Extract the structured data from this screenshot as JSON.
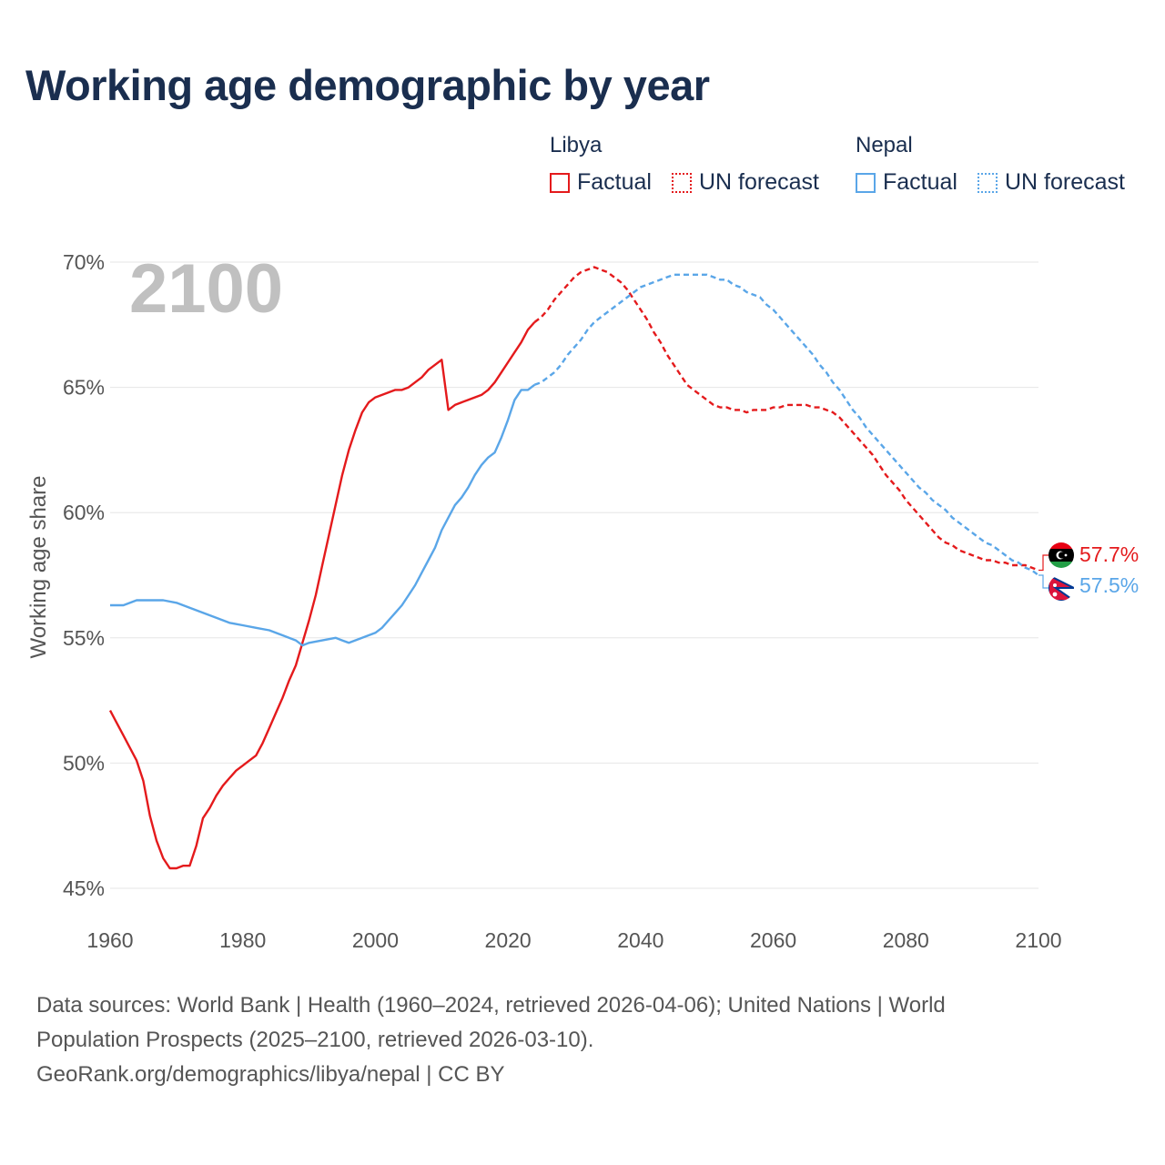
{
  "colors": {
    "libya": "#e41a1c",
    "nepal": "#5aa6e8",
    "title": "#1a2e4f",
    "grid": "#e6e6e6",
    "axis_text": "#555555",
    "year_watermark": "#c0c0c0"
  },
  "legend": {
    "groups": [
      {
        "name": "Libya",
        "factual_label": "Factual",
        "forecast_label": "UN forecast"
      },
      {
        "name": "Nepal",
        "factual_label": "Factual",
        "forecast_label": "UN forecast"
      }
    ]
  },
  "footer": {
    "line1": "Data sources: World Bank | Health (1960–2024, retrieved 2026-04-06); United Nations | World",
    "line2": "Population Prospects (2025–2100, retrieved 2026-03-10).",
    "line3": "GeoRank.org/demographics/libya/nepal | CC BY"
  },
  "chart_data": {
    "type": "line",
    "title": "Working age demographic by year",
    "year_watermark": "2100",
    "xlabel": "",
    "ylabel": "Working age share",
    "xlim": [
      1960,
      2100
    ],
    "ylim": [
      45,
      70
    ],
    "x_ticks": [
      1960,
      1980,
      2000,
      2020,
      2040,
      2060,
      2080,
      2100
    ],
    "y_ticks": [
      45,
      50,
      55,
      60,
      65,
      70
    ],
    "y_tick_labels": [
      "45%",
      "50%",
      "55%",
      "60%",
      "65%",
      "70%"
    ],
    "forecast_start": 2024,
    "series": [
      {
        "name": "Libya",
        "end_label": "57.7%",
        "points": [
          [
            1960,
            52.1
          ],
          [
            1962,
            51.1
          ],
          [
            1964,
            50.1
          ],
          [
            1965,
            49.3
          ],
          [
            1966,
            47.9
          ],
          [
            1967,
            46.9
          ],
          [
            1968,
            46.2
          ],
          [
            1969,
            45.8
          ],
          [
            1970,
            45.8
          ],
          [
            1971,
            45.9
          ],
          [
            1972,
            45.9
          ],
          [
            1973,
            46.7
          ],
          [
            1974,
            47.8
          ],
          [
            1975,
            48.2
          ],
          [
            1976,
            48.7
          ],
          [
            1977,
            49.1
          ],
          [
            1978,
            49.4
          ],
          [
            1979,
            49.7
          ],
          [
            1980,
            49.9
          ],
          [
            1981,
            50.1
          ],
          [
            1982,
            50.3
          ],
          [
            1983,
            50.8
          ],
          [
            1984,
            51.4
          ],
          [
            1985,
            52.0
          ],
          [
            1986,
            52.6
          ],
          [
            1987,
            53.3
          ],
          [
            1988,
            53.9
          ],
          [
            1989,
            54.8
          ],
          [
            1990,
            55.7
          ],
          [
            1991,
            56.7
          ],
          [
            1992,
            57.9
          ],
          [
            1993,
            59.1
          ],
          [
            1994,
            60.3
          ],
          [
            1995,
            61.5
          ],
          [
            1996,
            62.5
          ],
          [
            1997,
            63.3
          ],
          [
            1998,
            64.0
          ],
          [
            1999,
            64.4
          ],
          [
            2000,
            64.6
          ],
          [
            2001,
            64.7
          ],
          [
            2002,
            64.8
          ],
          [
            2003,
            64.9
          ],
          [
            2004,
            64.9
          ],
          [
            2005,
            65.0
          ],
          [
            2006,
            65.2
          ],
          [
            2007,
            65.4
          ],
          [
            2008,
            65.7
          ],
          [
            2009,
            65.9
          ],
          [
            2010,
            66.1
          ],
          [
            2011,
            64.1
          ],
          [
            2012,
            64.3
          ],
          [
            2013,
            64.4
          ],
          [
            2014,
            64.5
          ],
          [
            2015,
            64.6
          ],
          [
            2016,
            64.7
          ],
          [
            2017,
            64.9
          ],
          [
            2018,
            65.2
          ],
          [
            2019,
            65.6
          ],
          [
            2020,
            66.0
          ],
          [
            2021,
            66.4
          ],
          [
            2022,
            66.8
          ],
          [
            2023,
            67.3
          ],
          [
            2024,
            67.6
          ],
          [
            2025,
            67.8
          ],
          [
            2026,
            68.1
          ],
          [
            2027,
            68.5
          ],
          [
            2028,
            68.8
          ],
          [
            2029,
            69.1
          ],
          [
            2030,
            69.4
          ],
          [
            2031,
            69.6
          ],
          [
            2032,
            69.7
          ],
          [
            2033,
            69.8
          ],
          [
            2034,
            69.7
          ],
          [
            2035,
            69.6
          ],
          [
            2036,
            69.4
          ],
          [
            2037,
            69.2
          ],
          [
            2038,
            68.9
          ],
          [
            2039,
            68.5
          ],
          [
            2040,
            68.1
          ],
          [
            2041,
            67.7
          ],
          [
            2042,
            67.2
          ],
          [
            2043,
            66.8
          ],
          [
            2044,
            66.3
          ],
          [
            2045,
            65.9
          ],
          [
            2046,
            65.5
          ],
          [
            2047,
            65.1
          ],
          [
            2048,
            64.9
          ],
          [
            2049,
            64.7
          ],
          [
            2050,
            64.5
          ],
          [
            2051,
            64.3
          ],
          [
            2052,
            64.2
          ],
          [
            2053,
            64.2
          ],
          [
            2054,
            64.1
          ],
          [
            2055,
            64.1
          ],
          [
            2056,
            64.0
          ],
          [
            2057,
            64.1
          ],
          [
            2058,
            64.1
          ],
          [
            2059,
            64.1
          ],
          [
            2060,
            64.2
          ],
          [
            2061,
            64.2
          ],
          [
            2062,
            64.3
          ],
          [
            2063,
            64.3
          ],
          [
            2064,
            64.3
          ],
          [
            2065,
            64.3
          ],
          [
            2066,
            64.2
          ],
          [
            2067,
            64.2
          ],
          [
            2068,
            64.1
          ],
          [
            2069,
            64.0
          ],
          [
            2070,
            63.8
          ],
          [
            2071,
            63.5
          ],
          [
            2072,
            63.2
          ],
          [
            2073,
            62.9
          ],
          [
            2074,
            62.6
          ],
          [
            2075,
            62.3
          ],
          [
            2076,
            61.9
          ],
          [
            2077,
            61.5
          ],
          [
            2078,
            61.2
          ],
          [
            2079,
            60.9
          ],
          [
            2080,
            60.5
          ],
          [
            2081,
            60.2
          ],
          [
            2082,
            59.9
          ],
          [
            2083,
            59.6
          ],
          [
            2084,
            59.3
          ],
          [
            2085,
            59.0
          ],
          [
            2086,
            58.8
          ],
          [
            2087,
            58.7
          ],
          [
            2088,
            58.5
          ],
          [
            2089,
            58.4
          ],
          [
            2090,
            58.3
          ],
          [
            2091,
            58.2
          ],
          [
            2092,
            58.1
          ],
          [
            2093,
            58.1
          ],
          [
            2094,
            58.0
          ],
          [
            2095,
            58.0
          ],
          [
            2096,
            57.9
          ],
          [
            2097,
            57.9
          ],
          [
            2098,
            57.9
          ],
          [
            2099,
            57.8
          ],
          [
            2100,
            57.7
          ]
        ]
      },
      {
        "name": "Nepal",
        "end_label": "57.5%",
        "points": [
          [
            1960,
            56.3
          ],
          [
            1962,
            56.3
          ],
          [
            1964,
            56.5
          ],
          [
            1966,
            56.5
          ],
          [
            1968,
            56.5
          ],
          [
            1970,
            56.4
          ],
          [
            1972,
            56.2
          ],
          [
            1974,
            56.0
          ],
          [
            1976,
            55.8
          ],
          [
            1978,
            55.6
          ],
          [
            1980,
            55.5
          ],
          [
            1982,
            55.4
          ],
          [
            1984,
            55.3
          ],
          [
            1986,
            55.1
          ],
          [
            1988,
            54.9
          ],
          [
            1989,
            54.7
          ],
          [
            1990,
            54.8
          ],
          [
            1992,
            54.9
          ],
          [
            1994,
            55.0
          ],
          [
            1995,
            54.9
          ],
          [
            1996,
            54.8
          ],
          [
            1998,
            55.0
          ],
          [
            2000,
            55.2
          ],
          [
            2001,
            55.4
          ],
          [
            2002,
            55.7
          ],
          [
            2003,
            56.0
          ],
          [
            2004,
            56.3
          ],
          [
            2005,
            56.7
          ],
          [
            2006,
            57.1
          ],
          [
            2007,
            57.6
          ],
          [
            2008,
            58.1
          ],
          [
            2009,
            58.6
          ],
          [
            2010,
            59.3
          ],
          [
            2011,
            59.8
          ],
          [
            2012,
            60.3
          ],
          [
            2013,
            60.6
          ],
          [
            2014,
            61.0
          ],
          [
            2015,
            61.5
          ],
          [
            2016,
            61.9
          ],
          [
            2017,
            62.2
          ],
          [
            2018,
            62.4
          ],
          [
            2019,
            63.0
          ],
          [
            2020,
            63.7
          ],
          [
            2021,
            64.5
          ],
          [
            2022,
            64.9
          ],
          [
            2023,
            64.9
          ],
          [
            2024,
            65.1
          ],
          [
            2025,
            65.2
          ],
          [
            2026,
            65.4
          ],
          [
            2027,
            65.6
          ],
          [
            2028,
            65.9
          ],
          [
            2029,
            66.3
          ],
          [
            2030,
            66.6
          ],
          [
            2031,
            66.9
          ],
          [
            2032,
            67.3
          ],
          [
            2033,
            67.6
          ],
          [
            2034,
            67.8
          ],
          [
            2035,
            68.0
          ],
          [
            2036,
            68.2
          ],
          [
            2037,
            68.4
          ],
          [
            2038,
            68.6
          ],
          [
            2039,
            68.8
          ],
          [
            2040,
            69.0
          ],
          [
            2041,
            69.1
          ],
          [
            2042,
            69.2
          ],
          [
            2043,
            69.3
          ],
          [
            2044,
            69.4
          ],
          [
            2045,
            69.5
          ],
          [
            2046,
            69.5
          ],
          [
            2047,
            69.5
          ],
          [
            2048,
            69.5
          ],
          [
            2049,
            69.5
          ],
          [
            2050,
            69.5
          ],
          [
            2051,
            69.4
          ],
          [
            2052,
            69.3
          ],
          [
            2053,
            69.3
          ],
          [
            2054,
            69.1
          ],
          [
            2055,
            69.0
          ],
          [
            2056,
            68.8
          ],
          [
            2057,
            68.7
          ],
          [
            2058,
            68.6
          ],
          [
            2059,
            68.3
          ],
          [
            2060,
            68.1
          ],
          [
            2061,
            67.8
          ],
          [
            2062,
            67.5
          ],
          [
            2063,
            67.2
          ],
          [
            2064,
            66.9
          ],
          [
            2065,
            66.6
          ],
          [
            2066,
            66.3
          ],
          [
            2067,
            65.9
          ],
          [
            2068,
            65.6
          ],
          [
            2069,
            65.2
          ],
          [
            2070,
            64.9
          ],
          [
            2071,
            64.5
          ],
          [
            2072,
            64.1
          ],
          [
            2073,
            63.8
          ],
          [
            2074,
            63.4
          ],
          [
            2075,
            63.1
          ],
          [
            2076,
            62.8
          ],
          [
            2077,
            62.5
          ],
          [
            2078,
            62.2
          ],
          [
            2079,
            61.9
          ],
          [
            2080,
            61.6
          ],
          [
            2081,
            61.3
          ],
          [
            2082,
            61.0
          ],
          [
            2083,
            60.8
          ],
          [
            2084,
            60.5
          ],
          [
            2085,
            60.3
          ],
          [
            2086,
            60.1
          ],
          [
            2087,
            59.8
          ],
          [
            2088,
            59.6
          ],
          [
            2089,
            59.4
          ],
          [
            2090,
            59.2
          ],
          [
            2091,
            59.0
          ],
          [
            2092,
            58.8
          ],
          [
            2093,
            58.7
          ],
          [
            2094,
            58.5
          ],
          [
            2095,
            58.3
          ],
          [
            2096,
            58.1
          ],
          [
            2097,
            58.0
          ],
          [
            2098,
            57.8
          ],
          [
            2099,
            57.7
          ],
          [
            2100,
            57.5
          ]
        ]
      }
    ]
  }
}
